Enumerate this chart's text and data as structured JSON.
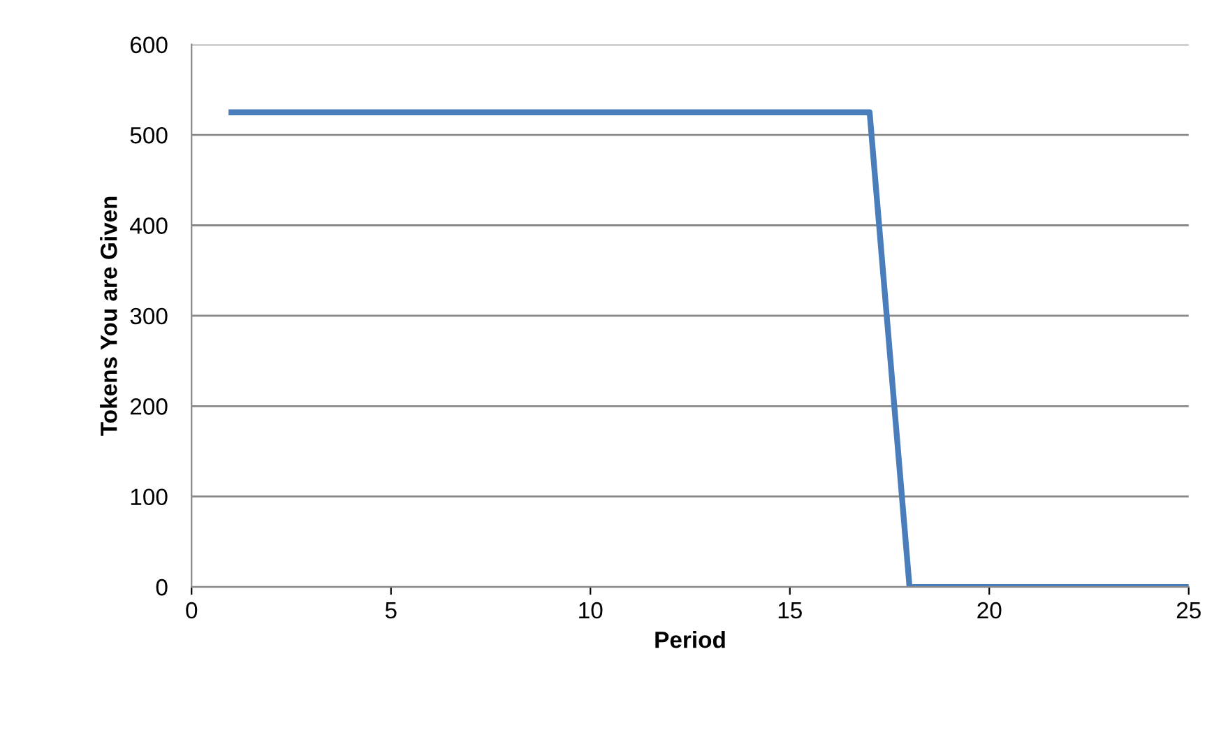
{
  "chart_data": {
    "type": "line",
    "xlabel": "Period",
    "ylabel": "Tokens You are Given",
    "x": [
      1,
      2,
      3,
      4,
      5,
      6,
      7,
      8,
      9,
      10,
      11,
      12,
      13,
      14,
      15,
      16,
      17,
      18,
      19,
      20,
      21,
      22,
      23,
      24,
      25
    ],
    "series": [
      {
        "color": "#4a7ebb",
        "values": [
          525,
          525,
          525,
          525,
          525,
          525,
          525,
          525,
          525,
          525,
          525,
          525,
          525,
          525,
          525,
          525,
          525,
          0,
          0,
          0,
          0,
          0,
          0,
          0,
          0
        ]
      }
    ],
    "xlim": [
      0,
      25
    ],
    "xticks": [
      0,
      5,
      10,
      15,
      20,
      25
    ],
    "ylim": [
      0,
      600
    ],
    "yticks": [
      0,
      100,
      200,
      300,
      400,
      500,
      600
    ],
    "grid": "y",
    "legend": false,
    "marker": "none",
    "line_style": "solid"
  }
}
